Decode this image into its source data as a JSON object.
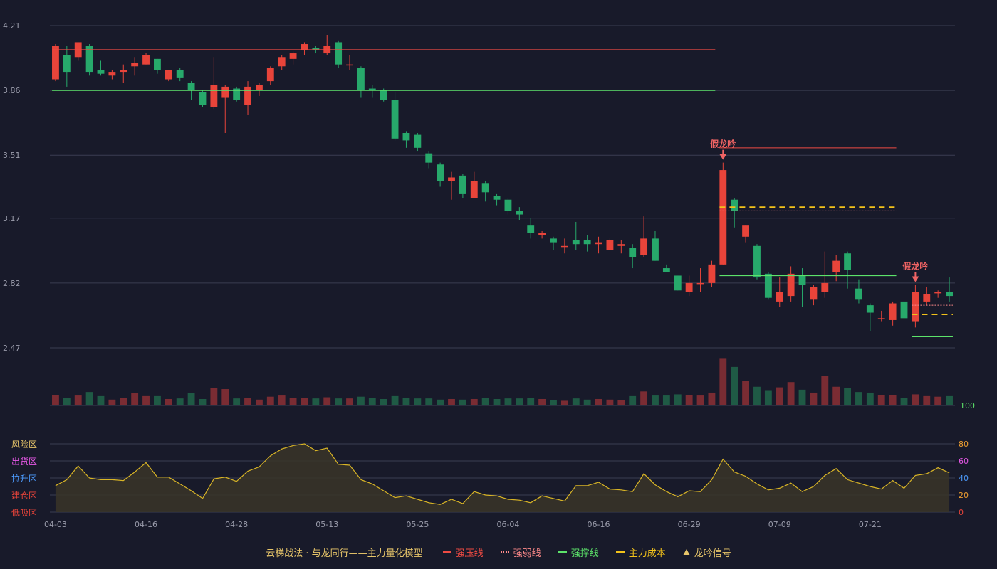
{
  "colors": {
    "up": "#e8443a",
    "down": "#27a96b",
    "up_vol": "#7a2c33",
    "down_vol": "#1f5a45",
    "pressure": "#ef4b43",
    "weak": "#ff8a8a",
    "support": "#5ce36a",
    "cost": "#f2c21a",
    "signal": "#f06464",
    "grid": "#3a3d52",
    "axis_text": "#9a9cab",
    "osc_line": "#d9b526",
    "osc_fill": "#3a3528"
  },
  "legend": {
    "title": "云梯战法 · 与龙同行——主力量化模型",
    "pressure": "强压线",
    "weak": "强弱线",
    "support": "强撑线",
    "cost": "主力成本",
    "signal": "龙吟信号"
  },
  "chart_data": {
    "type": "candlestick",
    "y_ticks": [
      "4.21",
      "3.86",
      "3.51",
      "3.17",
      "2.82",
      "2.47"
    ],
    "ylim": [
      2.47,
      4.21
    ],
    "x_tick_labels": [
      {
        "i": 0,
        "label": "04-03"
      },
      {
        "i": 8,
        "label": "04-16"
      },
      {
        "i": 16,
        "label": "04-28"
      },
      {
        "i": 24,
        "label": "05-13"
      },
      {
        "i": 32,
        "label": "05-25"
      },
      {
        "i": 40,
        "label": "06-04"
      },
      {
        "i": 48,
        "label": "06-16"
      },
      {
        "i": 56,
        "label": "06-29"
      },
      {
        "i": 64,
        "label": "07-09"
      },
      {
        "i": 72,
        "label": "07-21"
      }
    ],
    "candles": [
      [
        3.92,
        4.1,
        4.11,
        3.91
      ],
      [
        4.05,
        3.96,
        4.1,
        3.88
      ],
      [
        4.04,
        4.12,
        4.12,
        4.02
      ],
      [
        4.1,
        3.96,
        4.11,
        3.94
      ],
      [
        3.97,
        3.95,
        4.02,
        3.94
      ],
      [
        3.94,
        3.96,
        3.97,
        3.92
      ],
      [
        3.96,
        3.97,
        4.0,
        3.9
      ],
      [
        3.99,
        4.01,
        4.04,
        3.94
      ],
      [
        4.0,
        4.05,
        4.06,
        4.0
      ],
      [
        4.03,
        3.97,
        4.03,
        3.95
      ],
      [
        3.92,
        3.97,
        3.97,
        3.91
      ],
      [
        3.97,
        3.93,
        3.98,
        3.91
      ],
      [
        3.9,
        3.86,
        3.91,
        3.81
      ],
      [
        3.85,
        3.78,
        3.86,
        3.77
      ],
      [
        3.77,
        3.89,
        4.04,
        3.76
      ],
      [
        3.82,
        3.88,
        3.89,
        3.63
      ],
      [
        3.87,
        3.81,
        3.88,
        3.8
      ],
      [
        3.78,
        3.88,
        3.91,
        3.73
      ],
      [
        3.86,
        3.89,
        3.9,
        3.83
      ],
      [
        3.91,
        3.98,
        3.99,
        3.89
      ],
      [
        3.99,
        4.04,
        4.05,
        3.97
      ],
      [
        4.03,
        4.06,
        4.07,
        4.0
      ],
      [
        4.08,
        4.11,
        4.12,
        4.05
      ],
      [
        4.09,
        4.08,
        4.1,
        4.06
      ],
      [
        4.06,
        4.1,
        4.16,
        4.05
      ],
      [
        4.12,
        4.0,
        4.13,
        3.98
      ],
      [
        4.0,
        4.0,
        4.05,
        3.97
      ],
      [
        3.98,
        3.86,
        3.99,
        3.82
      ],
      [
        3.87,
        3.86,
        3.89,
        3.82
      ],
      [
        3.86,
        3.81,
        3.87,
        3.8
      ],
      [
        3.81,
        3.6,
        3.85,
        3.59
      ],
      [
        3.63,
        3.59,
        3.64,
        3.55
      ],
      [
        3.62,
        3.55,
        3.63,
        3.53
      ],
      [
        3.52,
        3.47,
        3.53,
        3.44
      ],
      [
        3.46,
        3.37,
        3.47,
        3.34
      ],
      [
        3.37,
        3.39,
        3.42,
        3.27
      ],
      [
        3.4,
        3.3,
        3.41,
        3.28
      ],
      [
        3.28,
        3.37,
        3.42,
        3.29
      ],
      [
        3.36,
        3.31,
        3.37,
        3.26
      ],
      [
        3.29,
        3.27,
        3.3,
        3.24
      ],
      [
        3.27,
        3.21,
        3.28,
        3.19
      ],
      [
        3.21,
        3.19,
        3.23,
        3.16
      ],
      [
        3.13,
        3.09,
        3.17,
        3.06
      ],
      [
        3.08,
        3.09,
        3.1,
        3.06
      ],
      [
        3.06,
        3.04,
        3.07,
        3.0
      ],
      [
        3.02,
        3.02,
        3.06,
        2.98
      ],
      [
        3.05,
        3.03,
        3.15,
        3.0
      ],
      [
        3.05,
        3.03,
        3.08,
        2.99
      ],
      [
        3.03,
        3.04,
        3.07,
        2.98
      ],
      [
        3.0,
        3.05,
        3.06,
        3.0
      ],
      [
        3.02,
        3.03,
        3.05,
        2.98
      ],
      [
        3.01,
        2.96,
        3.03,
        2.9
      ],
      [
        2.97,
        3.06,
        3.18,
        2.96
      ],
      [
        3.06,
        2.94,
        3.1,
        2.94
      ],
      [
        2.9,
        2.88,
        2.92,
        2.88
      ],
      [
        2.86,
        2.78,
        2.86,
        2.78
      ],
      [
        2.77,
        2.82,
        2.86,
        2.75
      ],
      [
        2.82,
        2.82,
        2.9,
        2.77
      ],
      [
        2.82,
        2.92,
        2.94,
        2.8
      ],
      [
        2.92,
        3.43,
        3.47,
        2.92
      ],
      [
        3.27,
        3.21,
        3.28,
        3.12
      ],
      [
        3.07,
        3.13,
        3.13,
        3.04
      ],
      [
        3.02,
        2.85,
        3.03,
        2.84
      ],
      [
        2.87,
        2.74,
        2.88,
        2.73
      ],
      [
        2.72,
        2.77,
        2.85,
        2.69
      ],
      [
        2.75,
        2.87,
        2.91,
        2.72
      ],
      [
        2.86,
        2.81,
        2.9,
        2.69
      ],
      [
        2.73,
        2.8,
        2.81,
        2.7
      ],
      [
        2.77,
        2.82,
        2.99,
        2.74
      ],
      [
        2.88,
        2.94,
        2.97,
        2.83
      ],
      [
        2.98,
        2.89,
        2.99,
        2.79
      ],
      [
        2.79,
        2.73,
        2.84,
        2.71
      ],
      [
        2.7,
        2.66,
        2.71,
        2.56
      ],
      [
        2.63,
        2.63,
        2.67,
        2.61
      ],
      [
        2.62,
        2.71,
        2.72,
        2.59
      ],
      [
        2.72,
        2.63,
        2.73,
        2.63
      ],
      [
        2.61,
        2.77,
        2.81,
        2.58
      ],
      [
        2.72,
        2.76,
        2.8,
        2.7
      ],
      [
        2.77,
        2.77,
        2.78,
        2.74
      ],
      [
        2.77,
        2.75,
        2.85,
        2.72
      ]
    ],
    "volume": [
      18,
      13,
      17,
      23,
      16,
      10,
      13,
      21,
      16,
      16,
      11,
      12,
      21,
      11,
      30,
      28,
      12,
      13,
      10,
      15,
      17,
      13,
      13,
      12,
      14,
      12,
      12,
      15,
      13,
      11,
      16,
      13,
      12,
      12,
      10,
      11,
      10,
      11,
      13,
      11,
      12,
      12,
      13,
      11,
      9,
      8,
      12,
      10,
      11,
      10,
      9,
      16,
      24,
      17,
      17,
      19,
      18,
      17,
      22,
      80,
      66,
      42,
      32,
      25,
      31,
      40,
      27,
      22,
      50,
      32,
      30,
      23,
      22,
      18,
      18,
      13,
      19,
      16,
      15,
      16
    ],
    "volume_ymax": 100,
    "volume_tick": "100",
    "oscillator": [
      31,
      38,
      54,
      40,
      38,
      38,
      37,
      47,
      58,
      41,
      41,
      33,
      25,
      16,
      39,
      41,
      36,
      48,
      53,
      66,
      74,
      78,
      80,
      72,
      75,
      56,
      55,
      38,
      33,
      25,
      17,
      19,
      15,
      11,
      9,
      15,
      10,
      24,
      20,
      19,
      15,
      14,
      11,
      19,
      16,
      13,
      31,
      31,
      35,
      27,
      26,
      24,
      45,
      32,
      24,
      18,
      25,
      24,
      38,
      62,
      47,
      42,
      33,
      26,
      28,
      34,
      24,
      30,
      43,
      51,
      38,
      34,
      30,
      27,
      37,
      28,
      43,
      45,
      52,
      46
    ],
    "oscillator_ticks": [
      "80",
      "60",
      "40",
      "20",
      "0"
    ],
    "zone_labels": [
      "风险区",
      "出货区",
      "拉升区",
      "建仓区",
      "低吸区"
    ],
    "zone_colors": [
      "#e8c66a",
      "#e657e6",
      "#4d9cff",
      "#e8443a",
      "#e8443a"
    ],
    "osc_tick_colors": [
      "#f0a030",
      "#e657e6",
      "#4d9cff",
      "#f0a030",
      "#e8443a"
    ],
    "lines": {
      "pressure_1": {
        "from": 59,
        "to": 74,
        "y": 3.55
      },
      "pressure_0": {
        "from": 0,
        "to": 58,
        "y": 4.08
      },
      "support_0": {
        "from": 0,
        "to": 58,
        "y": 3.86
      },
      "weak_1": {
        "from": 59,
        "to": 74,
        "y": 3.21
      },
      "cost_1": {
        "from": 59,
        "to": 74,
        "y": 3.23
      },
      "support_1": {
        "from": 59,
        "to": 74,
        "y": 2.86
      },
      "support_2": {
        "from": 76,
        "to": 79,
        "y": 2.53
      },
      "cost_2": {
        "from": 76,
        "to": 79,
        "y": 2.65
      },
      "weak_2": {
        "from": 76,
        "to": 79,
        "y": 2.7
      }
    },
    "signals": [
      {
        "i": 59,
        "label": "假龙吟"
      },
      {
        "i": 76,
        "label": "假龙吟"
      }
    ]
  }
}
